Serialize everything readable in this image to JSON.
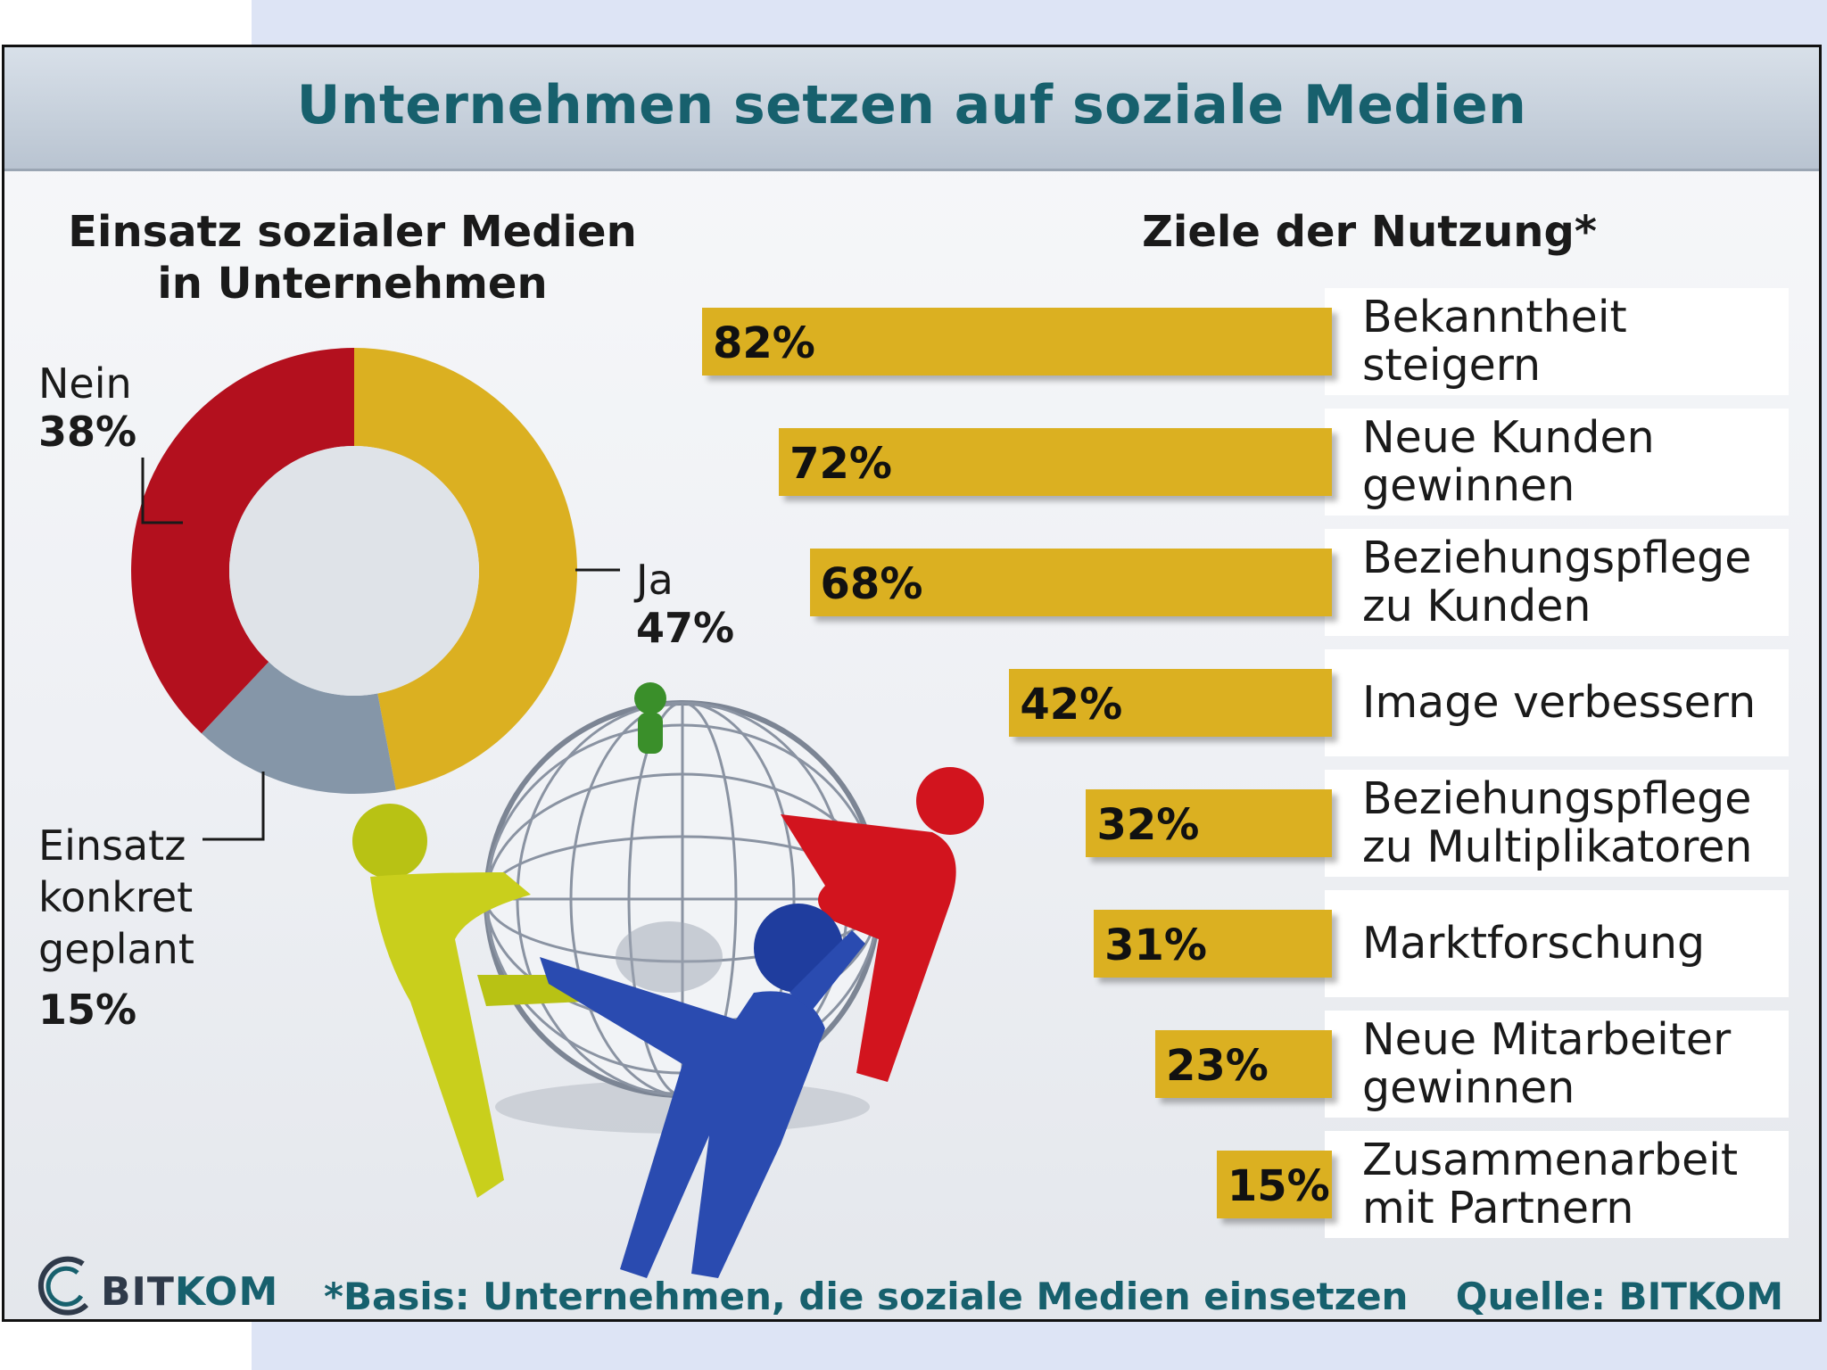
{
  "title": "Unternehmen setzen auf soziale Medien",
  "left_heading": [
    "Einsatz sozialer Medien",
    "in Unternehmen"
  ],
  "right_heading": "Ziele der Nutzung*",
  "footnote": "*Basis: Unternehmen, die soziale Medien einsetzen",
  "source": "Quelle: BITKOM",
  "logo": {
    "part1": "BIT",
    "part2": "KOM"
  },
  "colors": {
    "ja": "#dbb021",
    "nein": "#b3101e",
    "geplant": "#8596a8",
    "bar": "#dbb021",
    "title": "#17606d"
  },
  "chart_data": [
    {
      "type": "pie",
      "title": "Einsatz sozialer Medien in Unternehmen",
      "slices": [
        {
          "label": "Ja",
          "value": 47,
          "display": "47%"
        },
        {
          "label": "Einsatz konkret geplant",
          "value": 15,
          "display": "15%"
        },
        {
          "label": "Nein",
          "value": 38,
          "display": "38%"
        }
      ]
    },
    {
      "type": "bar",
      "orientation": "horizontal",
      "title": "Ziele der Nutzung*",
      "categories": [
        "Bekanntheit steigern",
        "Neue Kunden gewinnen",
        "Beziehungspflege zu Kunden",
        "Image verbessern",
        "Beziehungspflege zu Multiplikatoren",
        "Marktforschung",
        "Neue Mitarbeiter gewinnen",
        "Zusammenarbeit mit Partnern"
      ],
      "category_lines": [
        [
          "Bekanntheit steigern"
        ],
        [
          "Neue Kunden",
          "gewinnen"
        ],
        [
          "Beziehungspflege",
          "zu Kunden"
        ],
        [
          "Image verbessern"
        ],
        [
          "Beziehungspflege",
          "zu Multiplikatoren"
        ],
        [
          "Marktforschung"
        ],
        [
          "Neue Mitarbeiter",
          "gewinnen"
        ],
        [
          "Zusammenarbeit",
          "mit Partnern"
        ]
      ],
      "values": [
        82,
        72,
        68,
        42,
        32,
        31,
        23,
        15
      ],
      "value_labels": [
        "82%",
        "72%",
        "68%",
        "42%",
        "32%",
        "31%",
        "23%",
        "15%"
      ],
      "xlim": [
        0,
        100
      ]
    }
  ]
}
